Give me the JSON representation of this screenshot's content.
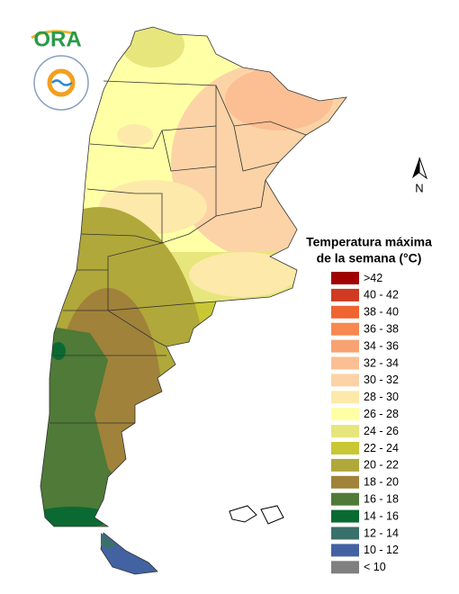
{
  "logo": {
    "text": "ORA"
  },
  "north_arrow": {
    "label": "N"
  },
  "legend": {
    "title_lines": [
      "Temperatura máxima",
      "de la semana (°C)"
    ],
    "items": [
      {
        "label": ">42",
        "color": "#a00000"
      },
      {
        "label": "40 - 42",
        "color": "#d03a22"
      },
      {
        "label": "38 - 40",
        "color": "#f06432"
      },
      {
        "label": "36 - 38",
        "color": "#f7884f"
      },
      {
        "label": "34 - 36",
        "color": "#f8a272"
      },
      {
        "label": "32 - 34",
        "color": "#fbbf93"
      },
      {
        "label": "30 - 32",
        "color": "#fcd3a6"
      },
      {
        "label": "28 - 30",
        "color": "#fde9aa"
      },
      {
        "label": "26 - 28",
        "color": "#ffffa6"
      },
      {
        "label": "24 - 26",
        "color": "#e6e67c"
      },
      {
        "label": "22 - 24",
        "color": "#c9c834"
      },
      {
        "label": "20 - 22",
        "color": "#b0a83a"
      },
      {
        "label": "18 - 20",
        "color": "#a0823a"
      },
      {
        "label": "16 - 18",
        "color": "#4f7a38"
      },
      {
        "label": "14 - 16",
        "color": "#0b6a32"
      },
      {
        "label": "12 - 14",
        "color": "#3a706a"
      },
      {
        "label": "10 - 12",
        "color": "#4262a2"
      },
      {
        "label": "< 10",
        "color": "#808080"
      }
    ]
  }
}
